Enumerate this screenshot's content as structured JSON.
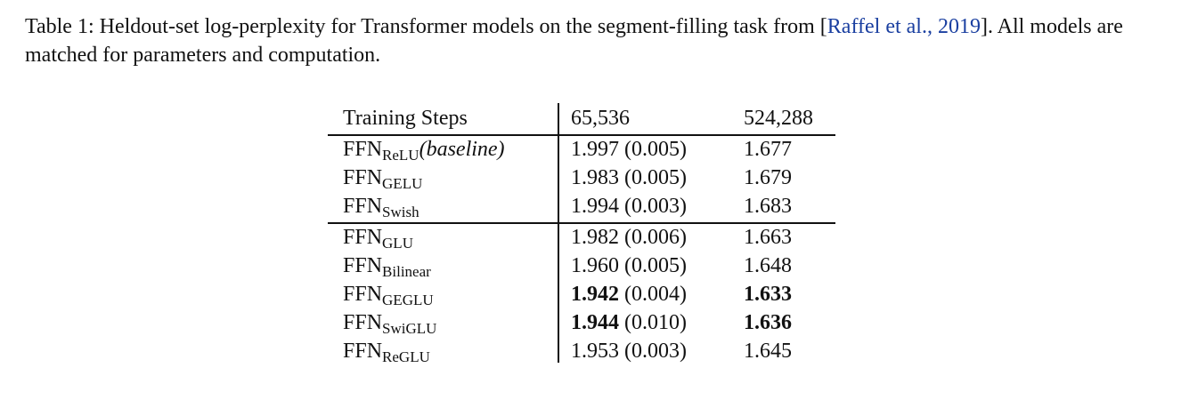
{
  "caption": {
    "label": "Table 1:",
    "text": "Heldout-set log-perplexity for Transformer models on the segment-filling task from [",
    "citation": "Raffel et al., 2019",
    "text_end": "]. All models are matched for parameters and computation."
  },
  "table": {
    "header": [
      "Training Steps",
      "65,536",
      "524,288"
    ],
    "groups": [
      [
        {
          "model": "FFN",
          "subscript": "ReLU",
          "note": "(baseline)",
          "value_a": "1.997",
          "std_a": "(0.005)",
          "value_b": "1.677",
          "bold": false
        },
        {
          "model": "FFN",
          "subscript": "GELU",
          "value_a": "1.983",
          "std_a": "(0.005)",
          "value_b": "1.679",
          "bold": false
        },
        {
          "model": "FFN",
          "subscript": "Swish",
          "value_a": "1.994",
          "std_a": "(0.003)",
          "value_b": "1.683",
          "bold": false
        }
      ],
      [
        {
          "model": "FFN",
          "subscript": "GLU",
          "value_a": "1.982",
          "std_a": "(0.006)",
          "value_b": "1.663",
          "bold": false
        },
        {
          "model": "FFN",
          "subscript": "Bilinear",
          "value_a": "1.960",
          "std_a": "(0.005)",
          "value_b": "1.648",
          "bold": false
        },
        {
          "model": "FFN",
          "subscript": "GEGLU",
          "value_a": "1.942",
          "std_a": "(0.004)",
          "value_b": "1.633",
          "bold": true
        },
        {
          "model": "FFN",
          "subscript": "SwiGLU",
          "value_a": "1.944",
          "std_a": "(0.010)",
          "value_b": "1.636",
          "bold": true
        },
        {
          "model": "FFN",
          "subscript": "ReGLU",
          "value_a": "1.953",
          "std_a": "(0.003)",
          "value_b": "1.645",
          "bold": false
        }
      ]
    ]
  }
}
